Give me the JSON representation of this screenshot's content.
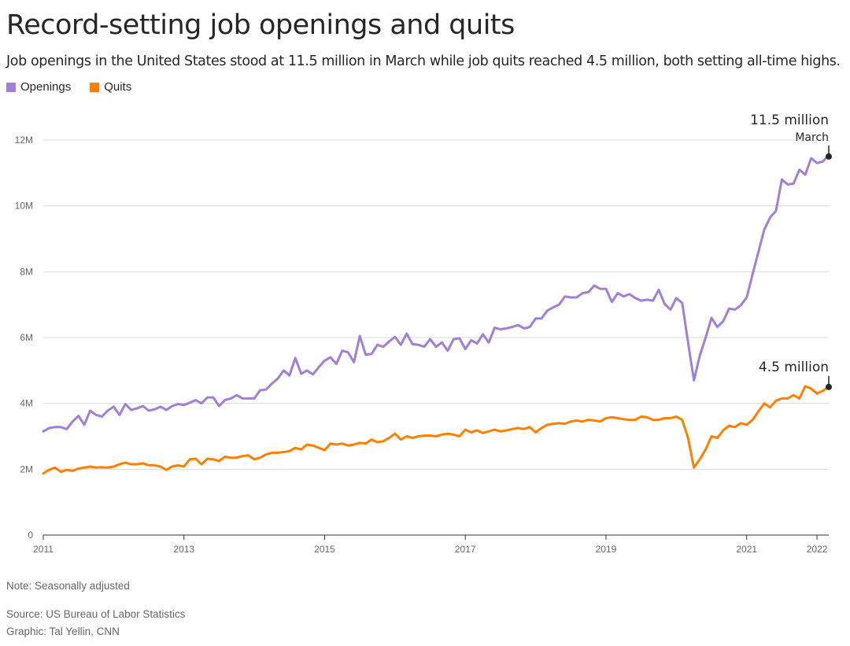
{
  "title": "Record-setting job openings and quits",
  "subtitle": "Job openings in the United States stood at 11.5 million in March while job quits reached 4.5 million, both setting all-time highs.",
  "legend": [
    {
      "label": "Openings",
      "color": "#a07fd6"
    },
    {
      "label": "Quits",
      "color": "#ff7f00"
    }
  ],
  "footer": {
    "note": "Note: Seasonally adjusted",
    "source": "Source: US Bureau of Labor Statistics",
    "graphic": "Graphic: Tal Yellin, CNN"
  },
  "chart_data": {
    "type": "line",
    "x_start": "2011-01",
    "x_end": "2022-03",
    "x_frequency": "monthly",
    "xticks": [
      "2011",
      "2013",
      "2015",
      "2017",
      "2019",
      "2021",
      "2022"
    ],
    "yticks": [
      "0",
      "2M",
      "4M",
      "6M",
      "8M",
      "10M",
      "12M"
    ],
    "ylim": [
      0,
      12
    ],
    "y_unit": "millions",
    "grid": "horizontal",
    "legend_position": "top-left",
    "annotations": [
      {
        "series": "Openings",
        "x": "2022-03",
        "y": 11.5,
        "text": "11.5 million",
        "subtext": "March"
      },
      {
        "series": "Quits",
        "x": "2022-03",
        "y": 4.5,
        "text": "4.5 million",
        "subtext": ""
      }
    ],
    "series": [
      {
        "name": "Openings",
        "color": "#a07fd6",
        "values": [
          3.15,
          3.25,
          3.28,
          3.28,
          3.22,
          3.45,
          3.62,
          3.35,
          3.78,
          3.65,
          3.6,
          3.78,
          3.9,
          3.65,
          3.98,
          3.8,
          3.85,
          3.92,
          3.78,
          3.82,
          3.9,
          3.8,
          3.92,
          3.98,
          3.95,
          4.02,
          4.1,
          4.0,
          4.18,
          4.18,
          3.92,
          4.1,
          4.15,
          4.25,
          4.15,
          4.15,
          4.15,
          4.4,
          4.42,
          4.6,
          4.75,
          5.0,
          4.85,
          5.38,
          4.9,
          5.0,
          4.88,
          5.1,
          5.3,
          5.4,
          5.2,
          5.6,
          5.55,
          5.25,
          6.05,
          5.48,
          5.5,
          5.78,
          5.72,
          5.88,
          6.02,
          5.78,
          6.12,
          5.8,
          5.78,
          5.72,
          5.95,
          5.72,
          5.85,
          5.6,
          5.95,
          5.98,
          5.65,
          5.92,
          5.82,
          6.1,
          5.85,
          6.3,
          6.25,
          6.28,
          6.32,
          6.38,
          6.28,
          6.32,
          6.58,
          6.58,
          6.82,
          6.92,
          7.0,
          7.25,
          7.22,
          7.22,
          7.35,
          7.38,
          7.58,
          7.48,
          7.48,
          7.08,
          7.35,
          7.25,
          7.32,
          7.2,
          7.12,
          7.15,
          7.12,
          7.45,
          7.02,
          6.85,
          7.2,
          7.05,
          5.85,
          4.7,
          5.45,
          6.0,
          6.6,
          6.32,
          6.5,
          6.88,
          6.85,
          6.98,
          7.22,
          7.92,
          8.6,
          9.28,
          9.65,
          9.85,
          10.8,
          10.65,
          10.68,
          11.1,
          10.95,
          11.45,
          11.3,
          11.35,
          11.55
        ]
      },
      {
        "name": "Quits",
        "color": "#ff7f00",
        "values": [
          1.87,
          1.98,
          2.05,
          1.92,
          1.98,
          1.95,
          2.02,
          2.05,
          2.08,
          2.05,
          2.06,
          2.05,
          2.08,
          2.15,
          2.2,
          2.15,
          2.15,
          2.18,
          2.12,
          2.12,
          2.08,
          1.98,
          2.08,
          2.12,
          2.08,
          2.3,
          2.32,
          2.15,
          2.32,
          2.3,
          2.25,
          2.38,
          2.35,
          2.35,
          2.4,
          2.42,
          2.3,
          2.35,
          2.45,
          2.5,
          2.5,
          2.52,
          2.55,
          2.65,
          2.6,
          2.75,
          2.72,
          2.65,
          2.58,
          2.78,
          2.75,
          2.78,
          2.72,
          2.75,
          2.8,
          2.78,
          2.9,
          2.82,
          2.85,
          2.95,
          3.08,
          2.9,
          3.0,
          2.95,
          3.0,
          3.02,
          3.02,
          3.0,
          3.05,
          3.08,
          3.05,
          3.0,
          3.2,
          3.12,
          3.18,
          3.1,
          3.15,
          3.2,
          3.15,
          3.18,
          3.22,
          3.25,
          3.22,
          3.28,
          3.12,
          3.25,
          3.35,
          3.38,
          3.4,
          3.38,
          3.45,
          3.48,
          3.45,
          3.5,
          3.48,
          3.45,
          3.55,
          3.58,
          3.55,
          3.52,
          3.5,
          3.5,
          3.6,
          3.58,
          3.5,
          3.5,
          3.55,
          3.55,
          3.6,
          3.5,
          2.95,
          2.05,
          2.3,
          2.6,
          3.0,
          2.95,
          3.18,
          3.32,
          3.28,
          3.4,
          3.35,
          3.5,
          3.75,
          4.0,
          3.88,
          4.08,
          4.15,
          4.15,
          4.25,
          4.15,
          4.52,
          4.45,
          4.3,
          4.38,
          4.5
        ]
      }
    ]
  }
}
